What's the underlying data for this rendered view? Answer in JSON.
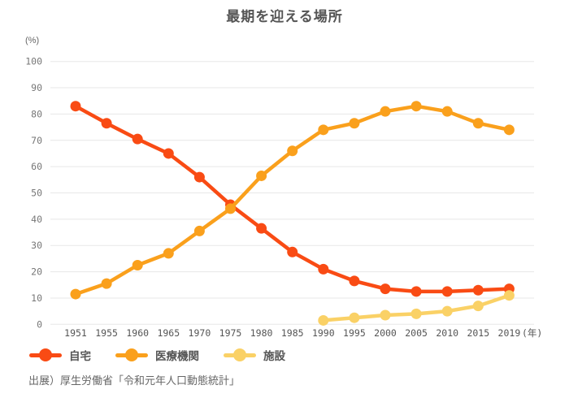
{
  "title": "最期を迎える場所",
  "unit_label": "(%)",
  "source": "出展）厚生労働省「令和元年人口動態統計」",
  "colors": {
    "home": "#f94b14",
    "medical": "#faa01c",
    "facility": "#fad166",
    "gridline": "#e7e7e7",
    "tick_label": "#777777",
    "x_label": "#555555"
  },
  "legend": [
    {
      "label": "自宅",
      "color": "#f94b14"
    },
    {
      "label": "医療機関",
      "color": "#faa01c"
    },
    {
      "label": "施設",
      "color": "#fad166"
    }
  ],
  "chart_data": {
    "type": "line",
    "title": "最期を迎える場所",
    "ylabel": "(%)",
    "x_suffix_label": "(年)",
    "categories": [
      "1951",
      "1955",
      "1960",
      "1965",
      "1970",
      "1975",
      "1980",
      "1985",
      "1990",
      "1995",
      "2000",
      "2005",
      "2010",
      "2015",
      "2019"
    ],
    "series": [
      {
        "name": "自宅",
        "color": "#f94b14",
        "values": [
          83,
          76.5,
          70.5,
          65,
          56,
          45.5,
          36.5,
          27.5,
          21,
          16.5,
          13.5,
          12.5,
          12.5,
          13,
          13.5
        ]
      },
      {
        "name": "医療機関",
        "color": "#faa01c",
        "values": [
          11.5,
          15.5,
          22.5,
          27,
          35.5,
          44,
          56.5,
          66,
          74,
          76.5,
          81,
          83,
          81,
          76.5,
          74
        ]
      },
      {
        "name": "施設",
        "color": "#fad166",
        "values": [
          null,
          null,
          null,
          null,
          null,
          null,
          null,
          null,
          1.5,
          2.5,
          3.5,
          4,
          5,
          7,
          11
        ]
      }
    ],
    "ylim": [
      0,
      100
    ],
    "ytick_step": 10,
    "grid": true,
    "legend_position": "bottom"
  }
}
